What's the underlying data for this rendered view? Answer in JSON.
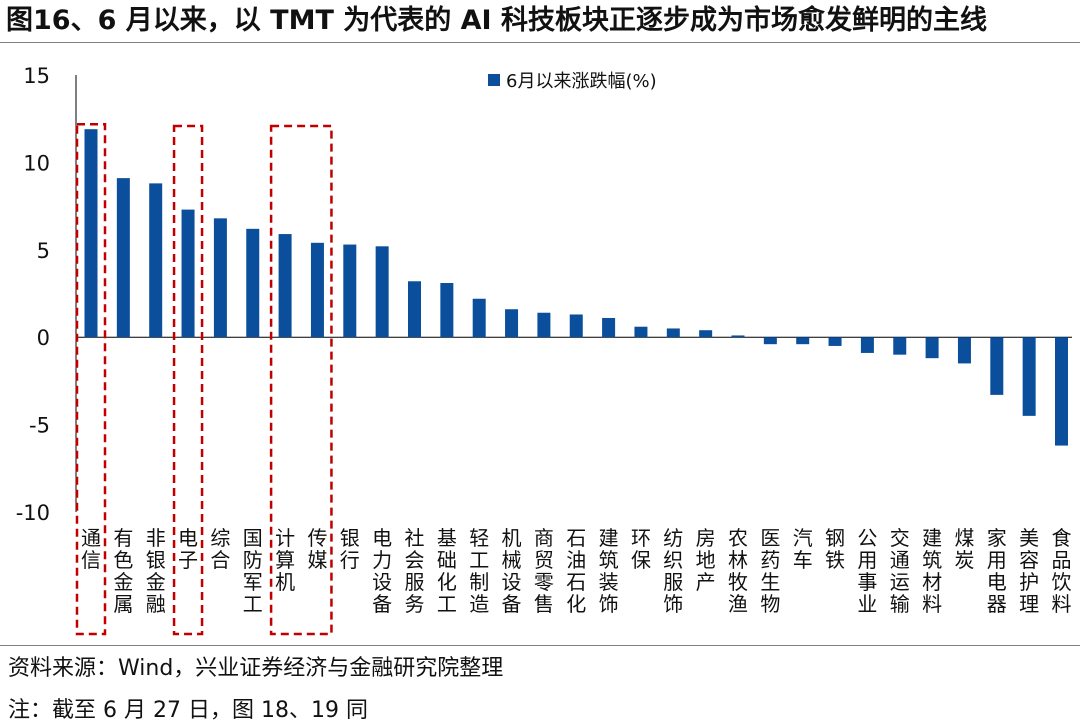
{
  "title": "图16、6 月以来，以 TMT 为代表的 AI 科技板块正逐步成为市场愈发鲜明的主线",
  "source": "资料来源：Wind，兴业证券经济与金融研究院整理",
  "note": "注：截至 6 月 27 日，图 18、19 同",
  "colors": {
    "bar": "#0B4F9C",
    "highlight_box": "#C00000",
    "axis": "#000000"
  },
  "chart_data": {
    "type": "bar",
    "legend": "6月以来涨跌幅(%)",
    "legend_position": "top",
    "ylim": [
      -10,
      15
    ],
    "yticks": [
      -10,
      -5,
      0,
      5,
      10,
      15
    ],
    "grid": false,
    "categories": [
      "通信",
      "有色金属",
      "非银金融",
      "电子",
      "综合",
      "国防军工",
      "计算机",
      "传媒",
      "银行",
      "电力设备",
      "社会服务",
      "基础化工",
      "轻工制造",
      "机械设备",
      "商贸零售",
      "石油石化",
      "建筑装饰",
      "环保",
      "纺织服饰",
      "房地产",
      "农林牧渔",
      "医药生物",
      "汽车",
      "钢铁",
      "公用事业",
      "交通运输",
      "建筑材料",
      "煤炭",
      "家用电器",
      "美容护理",
      "食品饮料"
    ],
    "series": [
      {
        "name": "6月以来涨跌幅(%)",
        "values": [
          11.9,
          9.1,
          8.8,
          7.3,
          6.8,
          6.2,
          5.9,
          5.4,
          5.3,
          5.2,
          3.2,
          3.1,
          2.2,
          1.6,
          1.4,
          1.3,
          1.1,
          0.6,
          0.5,
          0.4,
          0.1,
          -0.4,
          -0.4,
          -0.5,
          -0.9,
          -1.0,
          -1.2,
          -1.5,
          -3.3,
          -4.5,
          -6.2
        ]
      }
    ],
    "highlighted_categories": [
      "通信",
      "电子",
      "计算机",
      "传媒"
    ]
  }
}
